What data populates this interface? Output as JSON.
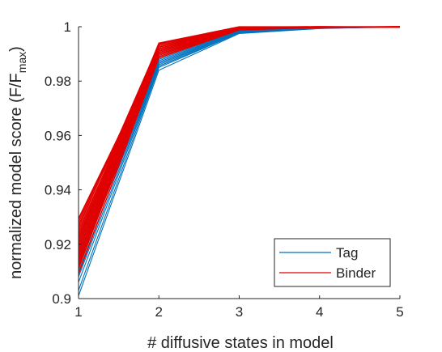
{
  "chart_data": {
    "type": "line",
    "xlabel": "# diffusive states in model",
    "ylabel_main": "normalized model score (F/F",
    "ylabel_sub": "max",
    "ylabel_close": ")",
    "xlim": [
      1,
      5
    ],
    "ylim": [
      0.9,
      1.0
    ],
    "xticks": [
      1,
      2,
      3,
      4,
      5
    ],
    "yticks": [
      0.9,
      0.92,
      0.94,
      0.96,
      0.98,
      1.0
    ],
    "yticks_labels": [
      "0.9",
      "0.92",
      "0.94",
      "0.96",
      "0.98",
      "1"
    ],
    "grid": false,
    "legend_position": "bottom-right",
    "x": [
      1,
      2,
      3,
      4,
      5
    ],
    "series_groups": [
      {
        "name": "Tag",
        "color": "#0072BD",
        "lines": [
          [
            0.901,
            0.984,
            0.9975,
            0.9993,
            1.0
          ],
          [
            0.903,
            0.985,
            0.9977,
            0.9994,
            1.0
          ],
          [
            0.906,
            0.9855,
            0.9978,
            0.9994,
            1.0
          ],
          [
            0.908,
            0.986,
            0.998,
            0.9995,
            1.0
          ],
          [
            0.91,
            0.9865,
            0.998,
            0.9995,
            0.9998
          ],
          [
            0.912,
            0.987,
            0.9982,
            0.9996,
            1.0
          ],
          [
            0.914,
            0.9875,
            0.9983,
            0.9996,
            1.0
          ],
          [
            0.916,
            0.988,
            0.9985,
            0.9997,
            0.9999
          ],
          [
            0.918,
            0.9885,
            0.9986,
            0.9997,
            1.0
          ],
          [
            0.92,
            0.989,
            0.9988,
            0.9998,
            1.0
          ],
          [
            0.922,
            0.9895,
            0.999,
            0.9998,
            0.9998
          ]
        ]
      },
      {
        "name": "Binder",
        "color": "#E00000",
        "lines": [
          [
            0.909,
            0.9885,
            0.9988,
            0.9997,
            1.0
          ],
          [
            0.911,
            0.989,
            0.9989,
            0.9997,
            0.9999
          ],
          [
            0.912,
            0.9895,
            0.999,
            0.9998,
            1.0
          ],
          [
            0.913,
            0.99,
            0.9991,
            0.9998,
            0.9998
          ],
          [
            0.914,
            0.9905,
            0.9992,
            0.9998,
            1.0
          ],
          [
            0.915,
            0.991,
            0.9993,
            0.9999,
            0.9999
          ],
          [
            0.916,
            0.9915,
            0.9994,
            0.9999,
            1.0
          ],
          [
            0.917,
            0.992,
            0.9995,
            0.9999,
            1.0
          ],
          [
            0.918,
            0.9925,
            0.9996,
            1.0,
            0.9998
          ],
          [
            0.919,
            0.993,
            0.9997,
            1.0,
            1.0
          ],
          [
            0.92,
            0.9935,
            0.9998,
            1.0,
            0.9999
          ],
          [
            0.921,
            0.9938,
            0.9999,
            1.0,
            1.0
          ],
          [
            0.922,
            0.994,
            1.0,
            1.0,
            0.9998
          ],
          [
            0.923,
            0.9925,
            0.9996,
            0.9999,
            1.0
          ],
          [
            0.924,
            0.993,
            0.9997,
            1.0,
            0.9999
          ],
          [
            0.925,
            0.992,
            0.9995,
            0.9999,
            1.0
          ],
          [
            0.926,
            0.9935,
            0.9998,
            1.0,
            0.9998
          ],
          [
            0.927,
            0.991,
            0.9993,
            0.9998,
            1.0
          ],
          [
            0.928,
            0.9915,
            0.9994,
            0.9999,
            0.9999
          ],
          [
            0.929,
            0.9905,
            0.9992,
            0.9998,
            1.0
          ],
          [
            0.9295,
            0.99,
            0.999,
            0.9997,
            0.9998
          ]
        ]
      }
    ],
    "legend": [
      {
        "label": "Tag",
        "color": "#0072BD"
      },
      {
        "label": "Binder",
        "color": "#E00000"
      }
    ]
  }
}
